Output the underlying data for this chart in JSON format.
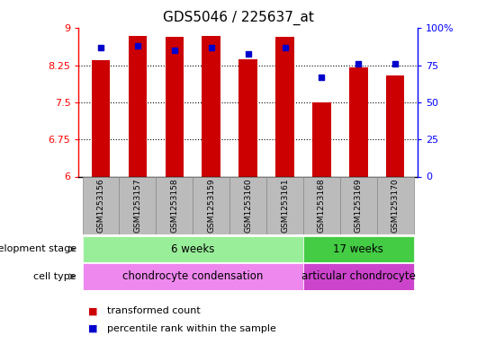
{
  "title": "GDS5046 / 225637_at",
  "samples": [
    "GSM1253156",
    "GSM1253157",
    "GSM1253158",
    "GSM1253159",
    "GSM1253160",
    "GSM1253161",
    "GSM1253168",
    "GSM1253169",
    "GSM1253170"
  ],
  "transformed_counts": [
    8.35,
    8.85,
    8.82,
    8.85,
    8.38,
    8.82,
    7.5,
    8.2,
    8.05
  ],
  "percentile_ranks": [
    87,
    88,
    85,
    87,
    83,
    87,
    67,
    76,
    76
  ],
  "ylim_left": [
    6,
    9
  ],
  "ylim_right": [
    0,
    100
  ],
  "yticks_left": [
    6,
    6.75,
    7.5,
    8.25,
    9
  ],
  "yticks_right": [
    0,
    25,
    50,
    75,
    100
  ],
  "ytick_labels_left": [
    "6",
    "6.75",
    "7.5",
    "8.25",
    "9"
  ],
  "ytick_labels_right": [
    "0",
    "25",
    "50",
    "75",
    "100%"
  ],
  "bar_color": "#cc0000",
  "dot_color": "#0000cc",
  "bar_width": 0.5,
  "dev_stage_groups": [
    {
      "label": "6 weeks",
      "start": 0,
      "end": 5,
      "color": "#99ee99"
    },
    {
      "label": "17 weeks",
      "start": 6,
      "end": 8,
      "color": "#44cc44"
    }
  ],
  "cell_type_groups": [
    {
      "label": "chondrocyte condensation",
      "start": 0,
      "end": 5,
      "color": "#ee88ee"
    },
    {
      "label": "articular chondrocyte",
      "start": 6,
      "end": 8,
      "color": "#cc44cc"
    }
  ],
  "dev_stage_label": "development stage",
  "cell_type_label": "cell type",
  "legend_items": [
    {
      "color": "#cc0000",
      "label": "transformed count"
    },
    {
      "color": "#0000cc",
      "label": "percentile rank within the sample"
    }
  ],
  "grid_color": "black",
  "background_color": "#ffffff",
  "base_value": 6,
  "sample_box_color": "#bbbbbb",
  "sample_box_edge": "#888888"
}
